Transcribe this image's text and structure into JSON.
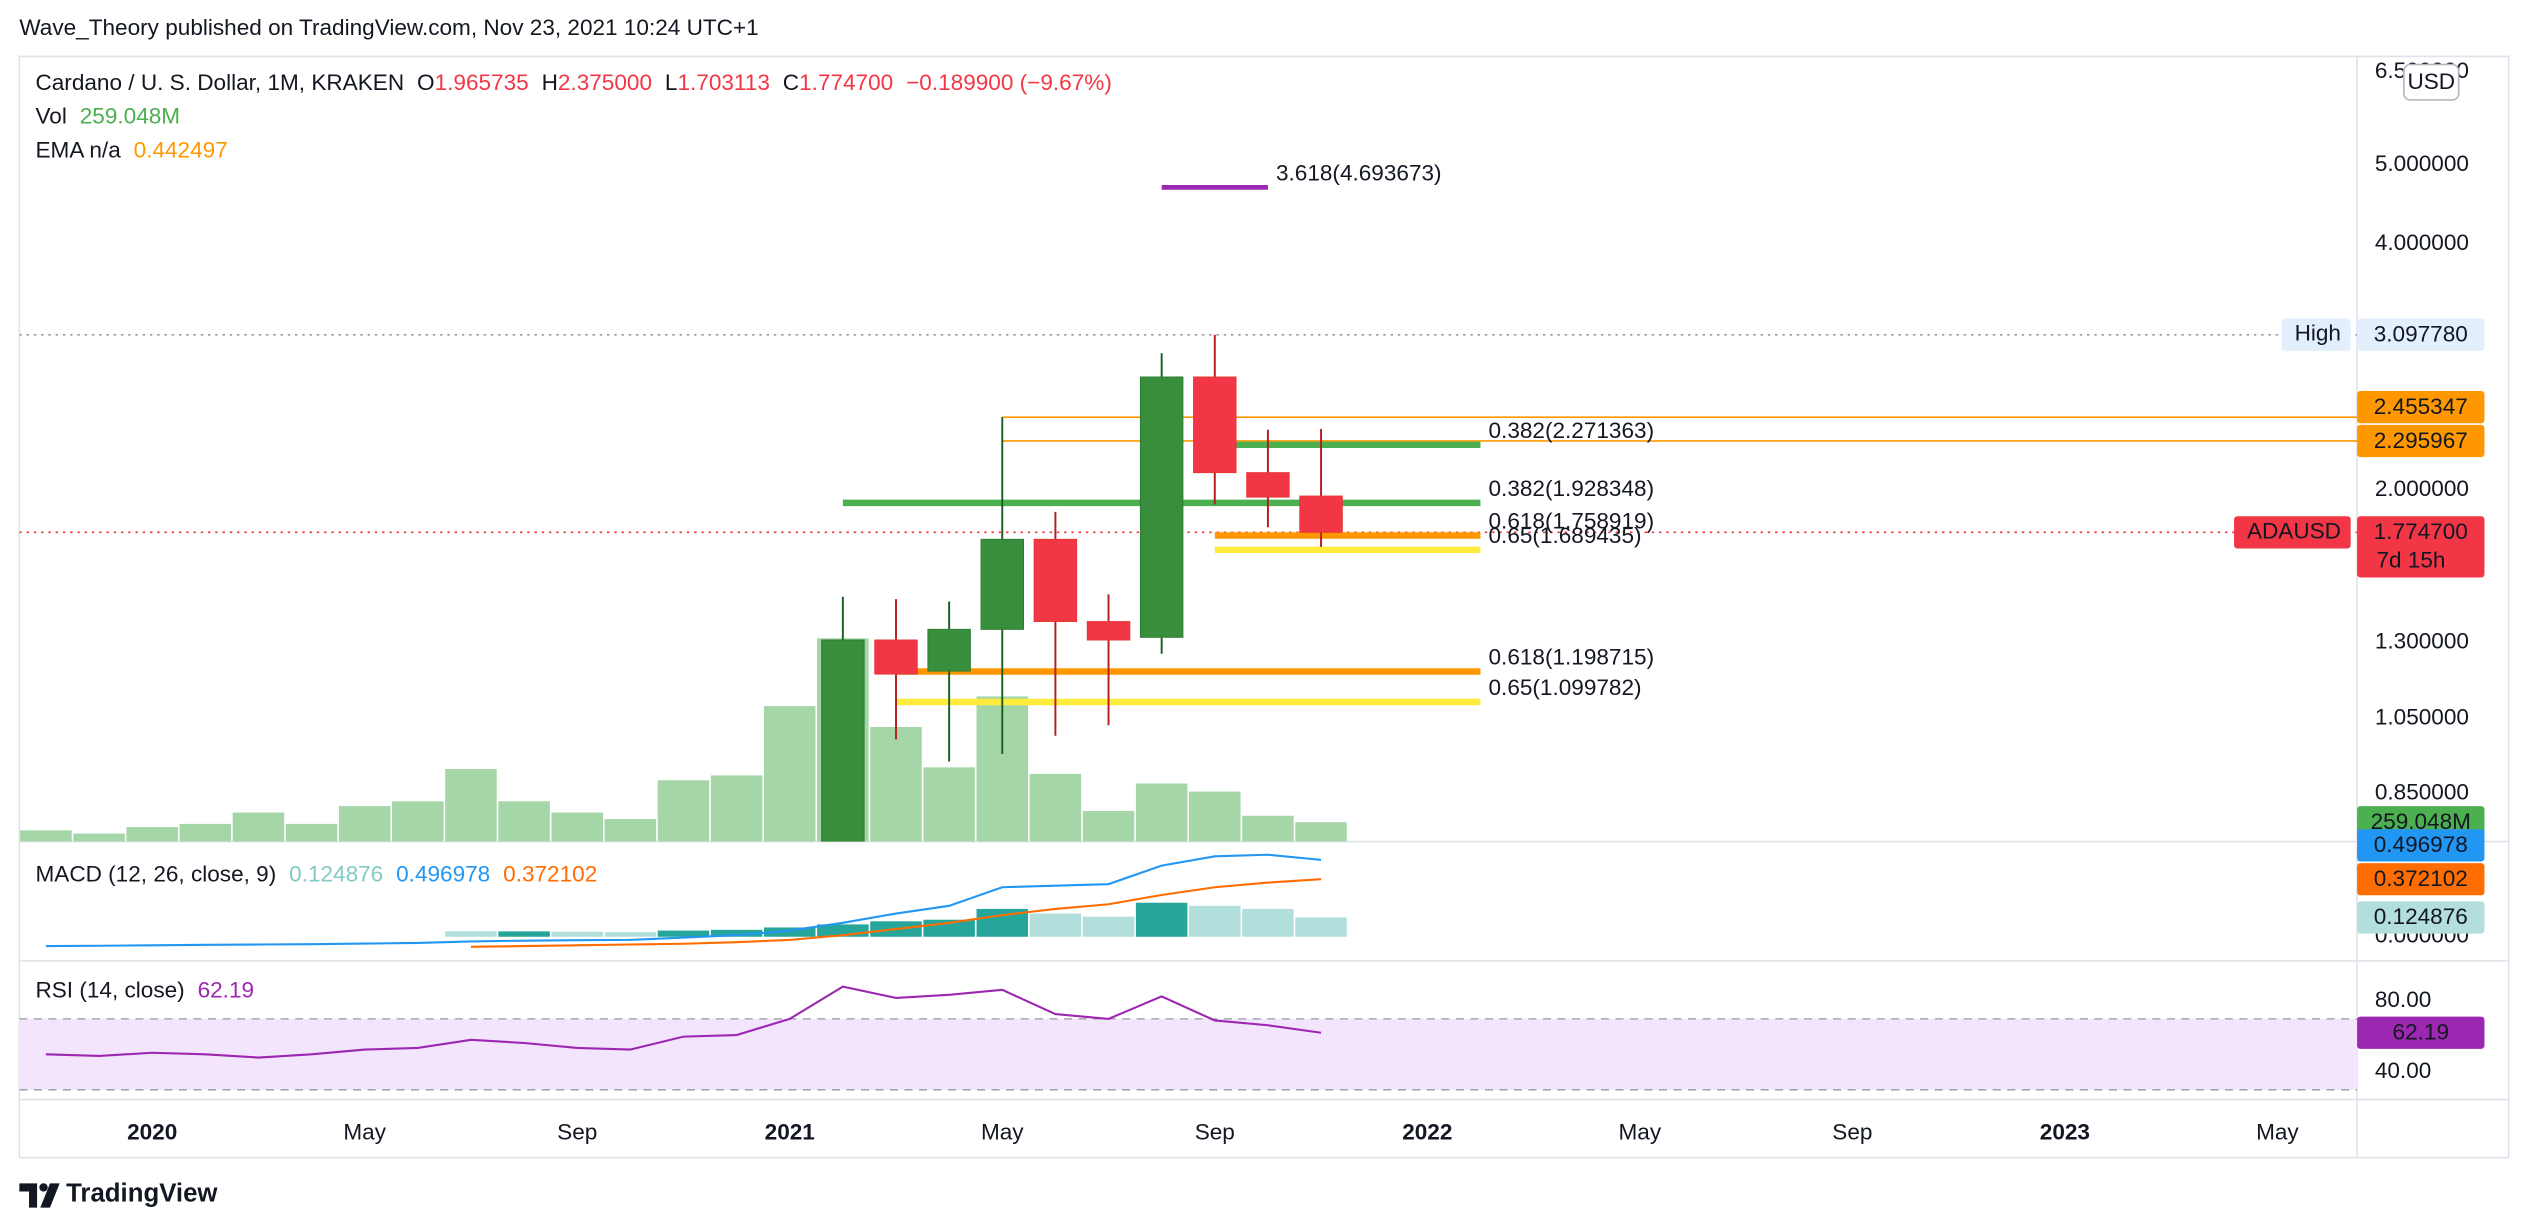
{
  "header": {
    "published": "Wave_Theory published on TradingView.com, Nov 23, 2021 10:24 UTC+1",
    "brand": "TradingView"
  },
  "chart_data": [
    {
      "type": "candlestick",
      "symbol": "Cardano / U. S. Dollar, 1M, KRAKEN",
      "ohlc_legend": [
        {
          "key": "O",
          "value": "1.965735"
        },
        {
          "key": "H",
          "value": "2.375000"
        },
        {
          "key": "L",
          "value": "1.703113"
        },
        {
          "key": "C",
          "value": "1.774700"
        }
      ],
      "change": "−0.189900 (−9.67%)",
      "currency": "USD",
      "log_scale": true,
      "grid": false,
      "ylim": [
        0.742,
        6.79
      ],
      "yticks": [
        {
          "value": 0.85,
          "label": "0.850000"
        },
        {
          "value": 1.05,
          "label": "1.050000"
        },
        {
          "value": 1.3,
          "label": "1.300000"
        },
        {
          "value": 2,
          "label": "2.000000"
        },
        {
          "value": 4,
          "label": "4.000000"
        },
        {
          "value": 5,
          "label": "5.000000"
        },
        {
          "value": 6.5,
          "label": "6.500000"
        }
      ],
      "xlim": [
        "2019-11",
        "2023-06"
      ],
      "xticks": [
        {
          "value": "2020-01",
          "label": "2020"
        },
        {
          "value": "2020-05",
          "label": "May"
        },
        {
          "value": "2020-09",
          "label": "Sep"
        },
        {
          "value": "2021-01",
          "label": "2021"
        },
        {
          "value": "2021-05",
          "label": "May"
        },
        {
          "value": "2021-09",
          "label": "Sep"
        },
        {
          "value": "2022-01",
          "label": "2022"
        },
        {
          "value": "2022-05",
          "label": "May"
        },
        {
          "value": "2022-09",
          "label": "Sep"
        },
        {
          "value": "2023-01",
          "label": "2023"
        },
        {
          "value": "2023-05",
          "label": "May"
        }
      ],
      "candles": {
        "x": [
          "2021-02",
          "2021-03",
          "2021-04",
          "2021-05",
          "2021-06",
          "2021-07",
          "2021-08",
          "2021-09",
          "2021-10",
          "2021-11"
        ],
        "open": [
          0.7,
          1.31,
          1.2,
          1.35,
          1.74,
          1.38,
          1.32,
          2.75,
          2.1,
          1.965735
        ],
        "high": [
          1.48,
          1.47,
          1.46,
          2.455347,
          1.88,
          1.49,
          2.94,
          3.09778,
          2.37,
          2.375
        ],
        "low": [
          0.69,
          0.99,
          0.93,
          0.95,
          1.0,
          1.03,
          1.26,
          1.92,
          1.8,
          1.703113
        ],
        "close": [
          1.31,
          1.19,
          1.35,
          1.74,
          1.38,
          1.31,
          2.75,
          2.1,
          1.96,
          1.7747
        ],
        "up_color": "#388e3c",
        "down_color": "#f23645"
      },
      "volume": {
        "name": "Vol",
        "color": "#a5d6a7",
        "label_color": "#4caf50",
        "ylim": [
          0,
          10513
        ],
        "x": [
          "2019-11",
          "2019-12",
          "2020-01",
          "2020-02",
          "2020-03",
          "2020-04",
          "2020-05",
          "2020-06",
          "2020-07",
          "2020-08",
          "2020-09",
          "2020-10",
          "2020-11",
          "2020-12",
          "2021-01",
          "2021-02",
          "2021-03",
          "2021-04",
          "2021-05",
          "2021-06",
          "2021-07",
          "2021-08",
          "2021-09",
          "2021-10",
          "2021-11"
        ],
        "values": [
          151,
          108,
          194,
          237,
          389,
          237,
          475,
          540,
          972,
          540,
          389,
          302,
          821,
          886,
          1814,
          2722,
          1534,
          994,
          1944,
          907,
          410,
          778,
          670,
          346,
          259.048
        ],
        "value_labels": [
          null,
          null,
          null,
          null,
          null,
          null,
          null,
          null,
          null,
          null,
          null,
          null,
          null,
          null,
          null,
          null,
          null,
          null,
          null,
          null,
          null,
          null,
          null,
          null,
          "259.048M"
        ]
      },
      "ema": {
        "label": "EMA n/a",
        "value": 0.442497,
        "color": "#ff9800"
      },
      "price_lines": [
        {
          "name": "High",
          "value": 3.09778,
          "label": "3.097780",
          "color": "#9598a1",
          "label_color": "#e3effd",
          "style": "dotted"
        },
        {
          "value": 2.455347,
          "label": "2.455347",
          "color": "#ff9800",
          "from": "2021-05"
        },
        {
          "value": 2.295967,
          "label": "2.295967",
          "color": "#ff9800",
          "from": "2021-05"
        },
        {
          "name": "ADAUSD",
          "value": 1.7747,
          "label": "1.774700",
          "countdown": "7d 15h",
          "color": "#f23645",
          "style": "dotted"
        }
      ],
      "fib_levels": [
        {
          "label": "3.618(4.693673)",
          "value": 4.693673,
          "color": "#9c27b0",
          "from": "2021-08",
          "to": "2021-10"
        },
        {
          "label": "0.382(2.271363)",
          "value": 2.271363,
          "color": "#4caf50",
          "from": "2021-09",
          "to": "2022-02"
        },
        {
          "label": "0.382(1.928348)",
          "value": 1.928348,
          "color": "#4caf50",
          "from": "2021-02",
          "to": "2022-02"
        },
        {
          "label": "0.618(1.758919)",
          "value": 1.758919,
          "color": "#ff9800",
          "from": "2021-09",
          "to": "2022-02"
        },
        {
          "label": "0.65(1.689435)",
          "value": 1.689435,
          "color": "#ffeb3b",
          "from": "2021-09",
          "to": "2022-02"
        },
        {
          "label": "0.618(1.198715)",
          "value": 1.198715,
          "color": "#ff9800",
          "from": "2021-03",
          "to": "2022-02"
        },
        {
          "label": "0.65(1.099782)",
          "value": 1.099782,
          "color": "#ffeb3b",
          "from": "2021-03",
          "to": "2022-02"
        }
      ]
    },
    {
      "type": "macd",
      "title": "MACD (12, 26, close, 9)",
      "ylim": [
        -0.156,
        0.615
      ],
      "yticks": [
        {
          "value": 0,
          "label": "0.000000"
        }
      ],
      "x": [
        "2019-11",
        "2019-12",
        "2020-01",
        "2020-02",
        "2020-03",
        "2020-04",
        "2020-05",
        "2020-06",
        "2020-07",
        "2020-08",
        "2020-09",
        "2020-10",
        "2020-11",
        "2020-12",
        "2021-01",
        "2021-02",
        "2021-03",
        "2021-04",
        "2021-05",
        "2021-06",
        "2021-07",
        "2021-08",
        "2021-09",
        "2021-10",
        "2021-11"
      ],
      "series": [
        {
          "type": "bar",
          "color": "#80cbc4",
          "values": [
            null,
            null,
            null,
            null,
            null,
            null,
            null,
            null,
            0.035,
            0.035,
            0.033,
            0.03,
            0.04,
            0.045,
            0.06,
            0.08,
            0.1,
            0.11,
            0.18,
            0.15,
            0.13,
            0.22,
            0.2,
            0.18,
            0.124876
          ],
          "colors": [
            null,
            null,
            null,
            null,
            null,
            null,
            null,
            null,
            "#b2dfdb",
            "#26a69a",
            "#b2dfdb",
            "#b2dfdb",
            "#26a69a",
            "#26a69a",
            "#26a69a",
            "#26a69a",
            "#26a69a",
            "#26a69a",
            "#26a69a",
            "#b2dfdb",
            "#b2dfdb",
            "#26a69a",
            "#b2dfdb",
            "#b2dfdb",
            "#b2dfdb"
          ]
        },
        {
          "type": "line",
          "color": "#2196f3",
          "values": [
            -0.06,
            -0.058,
            -0.055,
            -0.052,
            -0.05,
            -0.048,
            -0.044,
            -0.04,
            -0.03,
            -0.025,
            -0.022,
            -0.02,
            -0.005,
            0.01,
            0.04,
            0.09,
            0.15,
            0.2,
            0.32,
            0.33,
            0.34,
            0.46,
            0.52,
            0.53,
            0.496978
          ]
        },
        {
          "type": "line",
          "color": "#ff6d00",
          "values": [
            null,
            null,
            null,
            null,
            null,
            null,
            null,
            null,
            -0.065,
            -0.06,
            -0.055,
            -0.05,
            -0.045,
            -0.035,
            -0.02,
            0.01,
            0.05,
            0.09,
            0.14,
            0.18,
            0.21,
            0.27,
            0.32,
            0.35,
            0.372102
          ]
        }
      ]
    },
    {
      "type": "line",
      "title": "RSI (14, close)",
      "ylim": [
        24.5,
        102.7
      ],
      "yticks": [
        {
          "value": 80,
          "label": "80.00"
        },
        {
          "value": 40,
          "label": "40.00"
        }
      ],
      "bands": [
        30,
        70
      ],
      "band_color": "#f3e5fc",
      "x": [
        "2019-11",
        "2019-12",
        "2020-01",
        "2020-02",
        "2020-03",
        "2020-04",
        "2020-05",
        "2020-06",
        "2020-07",
        "2020-08",
        "2020-09",
        "2020-10",
        "2020-11",
        "2020-12",
        "2021-01",
        "2021-02",
        "2021-03",
        "2021-04",
        "2021-05",
        "2021-06",
        "2021-07",
        "2021-08",
        "2021-09",
        "2021-10",
        "2021-11"
      ],
      "series": [
        {
          "type": "line",
          "color": "#9c27b0",
          "values": [
            50,
            49.1,
            50.9,
            50,
            48.2,
            50,
            52.7,
            53.6,
            58.2,
            56.4,
            53.6,
            52.7,
            60,
            60.9,
            70,
            88.2,
            81.8,
            83.6,
            86.4,
            72.7,
            70,
            82.7,
            69.1,
            66.4,
            62.19
          ]
        }
      ]
    }
  ]
}
